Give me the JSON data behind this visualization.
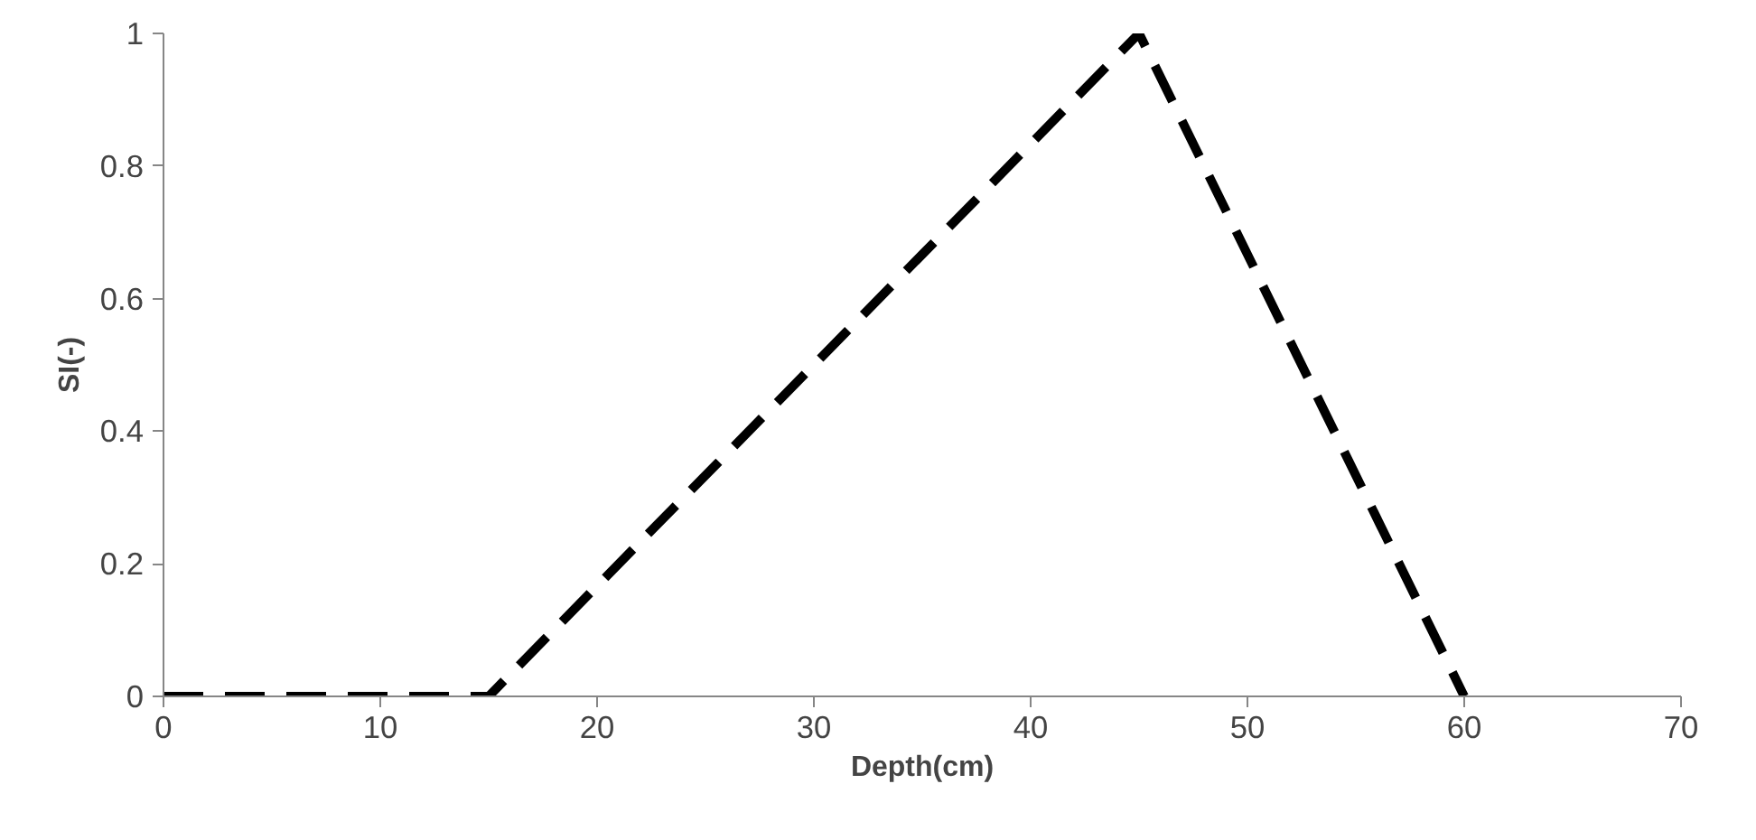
{
  "chart_data": {
    "type": "line",
    "xlabel": "Depth(cm)",
    "ylabel": "SI(-)",
    "x": [
      0,
      15,
      45,
      60
    ],
    "series": [
      {
        "color": "#000000",
        "values": [
          0,
          0,
          1,
          0
        ]
      }
    ],
    "xlim": [
      0,
      70
    ],
    "xticks": [
      0,
      10,
      20,
      30,
      40,
      50,
      60,
      70
    ],
    "ylim": [
      0,
      1
    ],
    "yticks": [
      0,
      {
        "value": 0.2,
        "label": "0.2"
      },
      {
        "value": 0.4,
        "label": "0.4"
      },
      {
        "value": 0.6,
        "label": "0.6"
      },
      {
        "value": 0.8,
        "label": "0.8"
      },
      1
    ],
    "grid": false,
    "marker": "none",
    "line_style": "dashed"
  }
}
